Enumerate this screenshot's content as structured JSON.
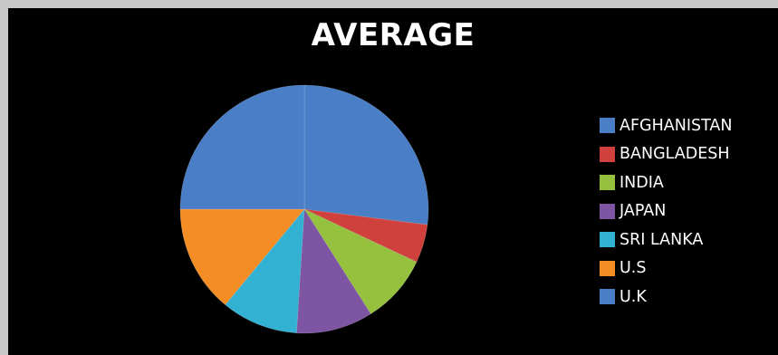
{
  "chart_data": {
    "type": "pie",
    "title": "AVERAGE",
    "categories": [
      "AFGHANISTAN",
      "BANGLADESH",
      "INDIA",
      "JAPAN",
      "SRI LANKA",
      "U.S",
      "U.K"
    ],
    "values": [
      27,
      5,
      9,
      10,
      10,
      14,
      25
    ],
    "colors": [
      "#4a7fc7",
      "#d0413d",
      "#95c13f",
      "#7d55a3",
      "#33b1d3",
      "#f48d24",
      "#4a7fc7"
    ],
    "legend": "right",
    "background": "#000000"
  }
}
